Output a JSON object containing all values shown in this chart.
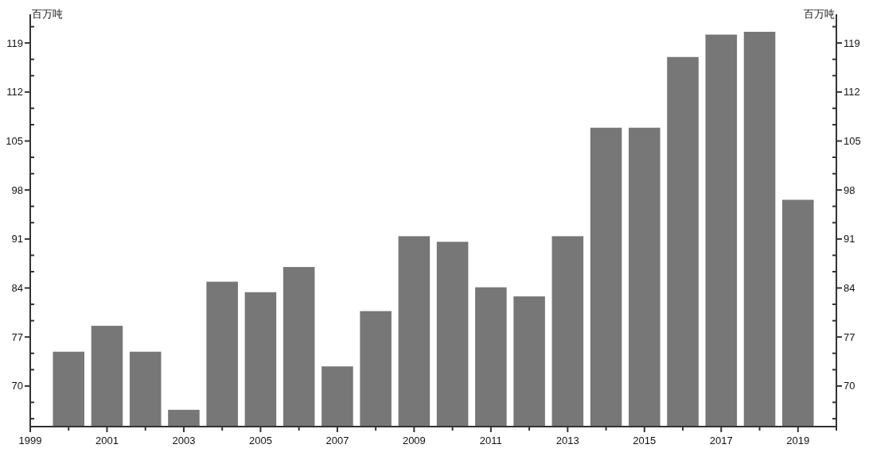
{
  "chart_data": {
    "type": "bar",
    "ylabel": "百万吨",
    "y2label": "百万吨",
    "x": [
      2000,
      2001,
      2002,
      2003,
      2004,
      2005,
      2006,
      2007,
      2008,
      2009,
      2010,
      2011,
      2012,
      2013,
      2014,
      2015,
      2016,
      2017,
      2018,
      2019
    ],
    "values": [
      74.9,
      78.6,
      74.9,
      66.6,
      84.9,
      83.4,
      87.0,
      72.8,
      80.7,
      91.4,
      90.6,
      84.1,
      82.8,
      91.4,
      106.9,
      106.9,
      117.0,
      120.2,
      120.6,
      96.6
    ],
    "color": "#777777",
    "xlim": [
      1999,
      2020
    ],
    "xticks": [
      1999,
      {
        "value": 2000,
        "label": null
      },
      2001,
      {
        "value": 2002,
        "label": null
      },
      2003,
      {
        "value": 2004,
        "label": null
      },
      2005,
      {
        "value": 2006,
        "label": null
      },
      2007,
      {
        "value": 2008,
        "label": null
      },
      2009,
      {
        "value": 2010,
        "label": null
      },
      2011,
      {
        "value": 2012,
        "label": null
      },
      2013,
      {
        "value": 2014,
        "label": null
      },
      2015,
      {
        "value": 2016,
        "label": null
      },
      2017,
      {
        "value": 2018,
        "label": null
      },
      2019,
      {
        "value": 2020,
        "label": null
      }
    ],
    "ylim": [
      64.2,
      123.1
    ],
    "yticks": [
      {
        "value": 65.33,
        "label": null
      },
      {
        "value": 67.67,
        "label": null
      },
      70,
      {
        "value": 72.33,
        "label": null
      },
      {
        "value": 74.67,
        "label": null
      },
      77,
      {
        "value": 79.33,
        "label": null
      },
      {
        "value": 81.67,
        "label": null
      },
      84,
      {
        "value": 86.33,
        "label": null
      },
      {
        "value": 88.67,
        "label": null
      },
      91,
      {
        "value": 93.33,
        "label": null
      },
      {
        "value": 95.67,
        "label": null
      },
      98,
      {
        "value": 100.33,
        "label": null
      },
      {
        "value": 102.67,
        "label": null
      },
      105,
      {
        "value": 107.33,
        "label": null
      },
      {
        "value": 109.67,
        "label": null
      },
      112,
      {
        "value": 114.33,
        "label": null
      },
      {
        "value": 116.67,
        "label": null
      },
      119,
      {
        "value": 121.33,
        "label": null
      }
    ],
    "y2lim": [
      64.2,
      123.1
    ],
    "y2ticks": [
      {
        "value": 65.33,
        "label": null
      },
      {
        "value": 67.67,
        "label": null
      },
      70,
      {
        "value": 72.33,
        "label": null
      },
      {
        "value": 74.67,
        "label": null
      },
      77,
      {
        "value": 79.33,
        "label": null
      },
      {
        "value": 81.67,
        "label": null
      },
      84,
      {
        "value": 86.33,
        "label": null
      },
      {
        "value": 88.67,
        "label": null
      },
      91,
      {
        "value": 93.33,
        "label": null
      },
      {
        "value": 95.67,
        "label": null
      },
      98,
      {
        "value": 100.33,
        "label": null
      },
      {
        "value": 102.67,
        "label": null
      },
      105,
      {
        "value": 107.33,
        "label": null
      },
      {
        "value": 109.67,
        "label": null
      },
      112,
      {
        "value": 114.33,
        "label": null
      },
      {
        "value": 116.67,
        "label": null
      },
      119,
      {
        "value": 121.33,
        "label": null
      }
    ]
  }
}
